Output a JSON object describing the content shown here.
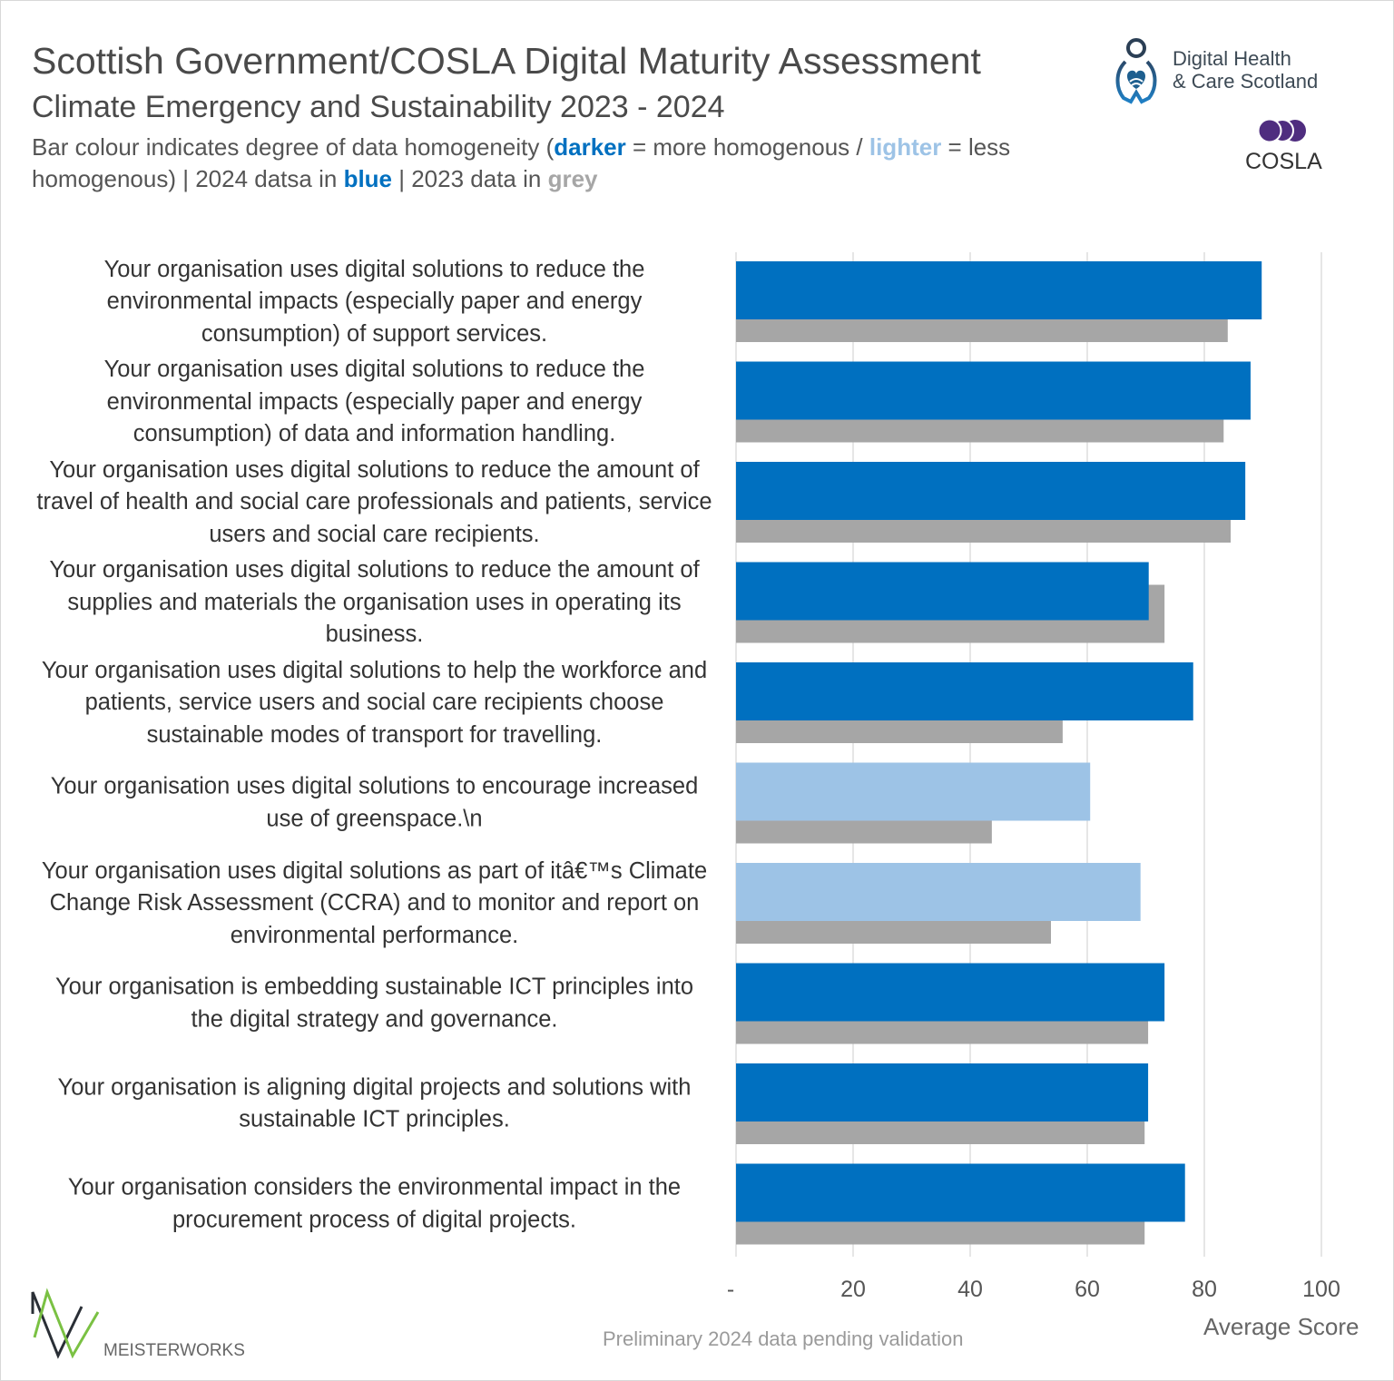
{
  "header": {
    "title": "Scottish Government/COSLA Digital Maturity Assessment",
    "subtitle": "Climate Emergency and Sustainability 2023 - 2024",
    "desc_1": "Bar colour indicates degree of data homogeneity (",
    "desc_darker": "darker",
    "desc_2": " = more homogenous / ",
    "desc_lighter": "lighter",
    "desc_3": " = less homogenous) | 2024 datsa in ",
    "desc_blue": "blue",
    "desc_4": " | 2023 data in ",
    "desc_grey": "grey"
  },
  "logos": {
    "dhcs_line1": "Digital Health",
    "dhcs_line2": "& Care Scotland",
    "cosla": "COSLA",
    "meisterworks": "MEISTERWORKS"
  },
  "footnote": "Preliminary 2024 data pending validation",
  "colors": {
    "dark_blue": "#0070c0",
    "light_blue": "#9dc3e6",
    "grey": "#a6a6a6",
    "cosla_purple": "#4f2d7f",
    "meisterworks_green": "#7ac143"
  },
  "chart_data": {
    "type": "bar",
    "orientation": "horizontal",
    "xlabel": "Average Score",
    "xlim": [
      0,
      100
    ],
    "xticks": [
      "-",
      "20",
      "40",
      "60",
      "80",
      "100"
    ],
    "grid": true,
    "categories": [
      "Your organisation uses digital solutions to reduce the environmental impacts (especially paper and energy consumption) of support services.",
      "Your organisation uses digital solutions to reduce the environmental impacts (especially paper and energy consumption) of data and information handling.",
      "Your organisation uses digital solutions to reduce the amount of travel of health and social care professionals and patients, service users and social care recipients.",
      "Your organisation uses digital solutions to reduce the amount of supplies and materials the organisation uses in operating its business.",
      "Your organisation uses digital solutions to help the workforce and patients, service users and social care recipients choose sustainable modes of transport for travelling.",
      "Your organisation uses digital solutions to encourage increased use of greenspace.\\n",
      "Your organisation uses digital solutions as part of itâ€™s Climate Change Risk Assessment (CCRA) and to monitor and report on environmental performance.",
      "Your organisation is embedding sustainable ICT principles into the digital strategy and governance.",
      "Your organisation is aligning digital projects and solutions with sustainable ICT principles.",
      "Your organisation considers the environmental impact in the procurement process of digital projects."
    ],
    "series": [
      {
        "year": "2024",
        "values": [
          89.8,
          87.9,
          87.0,
          70.5,
          78.1,
          60.5,
          69.1,
          73.2,
          70.4,
          76.7
        ],
        "homogeneity": [
          "darker",
          "darker",
          "darker",
          "darker",
          "darker",
          "lighter",
          "lighter",
          "darker",
          "darker",
          "darker"
        ]
      },
      {
        "year": "2023",
        "values": [
          84.0,
          83.3,
          84.5,
          73.2,
          55.8,
          43.7,
          53.8,
          70.4,
          69.8,
          69.8
        ]
      }
    ]
  }
}
